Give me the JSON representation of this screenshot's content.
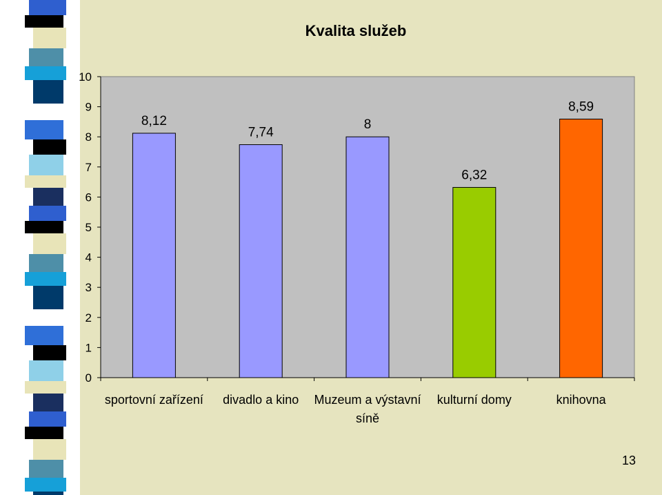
{
  "slide": {
    "page_number": "13"
  },
  "colors": {
    "panel_background": "#e6e4bf",
    "plot_background": "#c0c0c0",
    "bar_default": "#9999ff",
    "bar_green": "#99cc00",
    "bar_orange": "#ff6600"
  },
  "chart_data": {
    "type": "bar",
    "title": "Kvalita služeb",
    "categories": [
      "sportovní zařízení",
      "divadlo a kino",
      "Muzeum a výstavní síně",
      "kulturní domy",
      "knihovna"
    ],
    "category_lines": [
      [
        "sportovní zařízení"
      ],
      [
        "divadlo a kino"
      ],
      [
        "Muzeum a výstavní",
        "síně"
      ],
      [
        "kulturní domy"
      ],
      [
        "knihovna"
      ]
    ],
    "values": [
      8.12,
      7.74,
      8,
      6.32,
      8.59
    ],
    "value_labels": [
      "8,12",
      "7,74",
      "8",
      "6,32",
      "8,59"
    ],
    "bar_colors": [
      "#9999ff",
      "#9999ff",
      "#9999ff",
      "#99cc00",
      "#ff6600"
    ],
    "ylim": [
      0,
      10
    ],
    "yticks": [
      "0",
      "1",
      "2",
      "3",
      "4",
      "5",
      "6",
      "7",
      "8",
      "9",
      "10"
    ],
    "xlabel": "",
    "ylabel": "",
    "grid": false,
    "legend": "none"
  }
}
